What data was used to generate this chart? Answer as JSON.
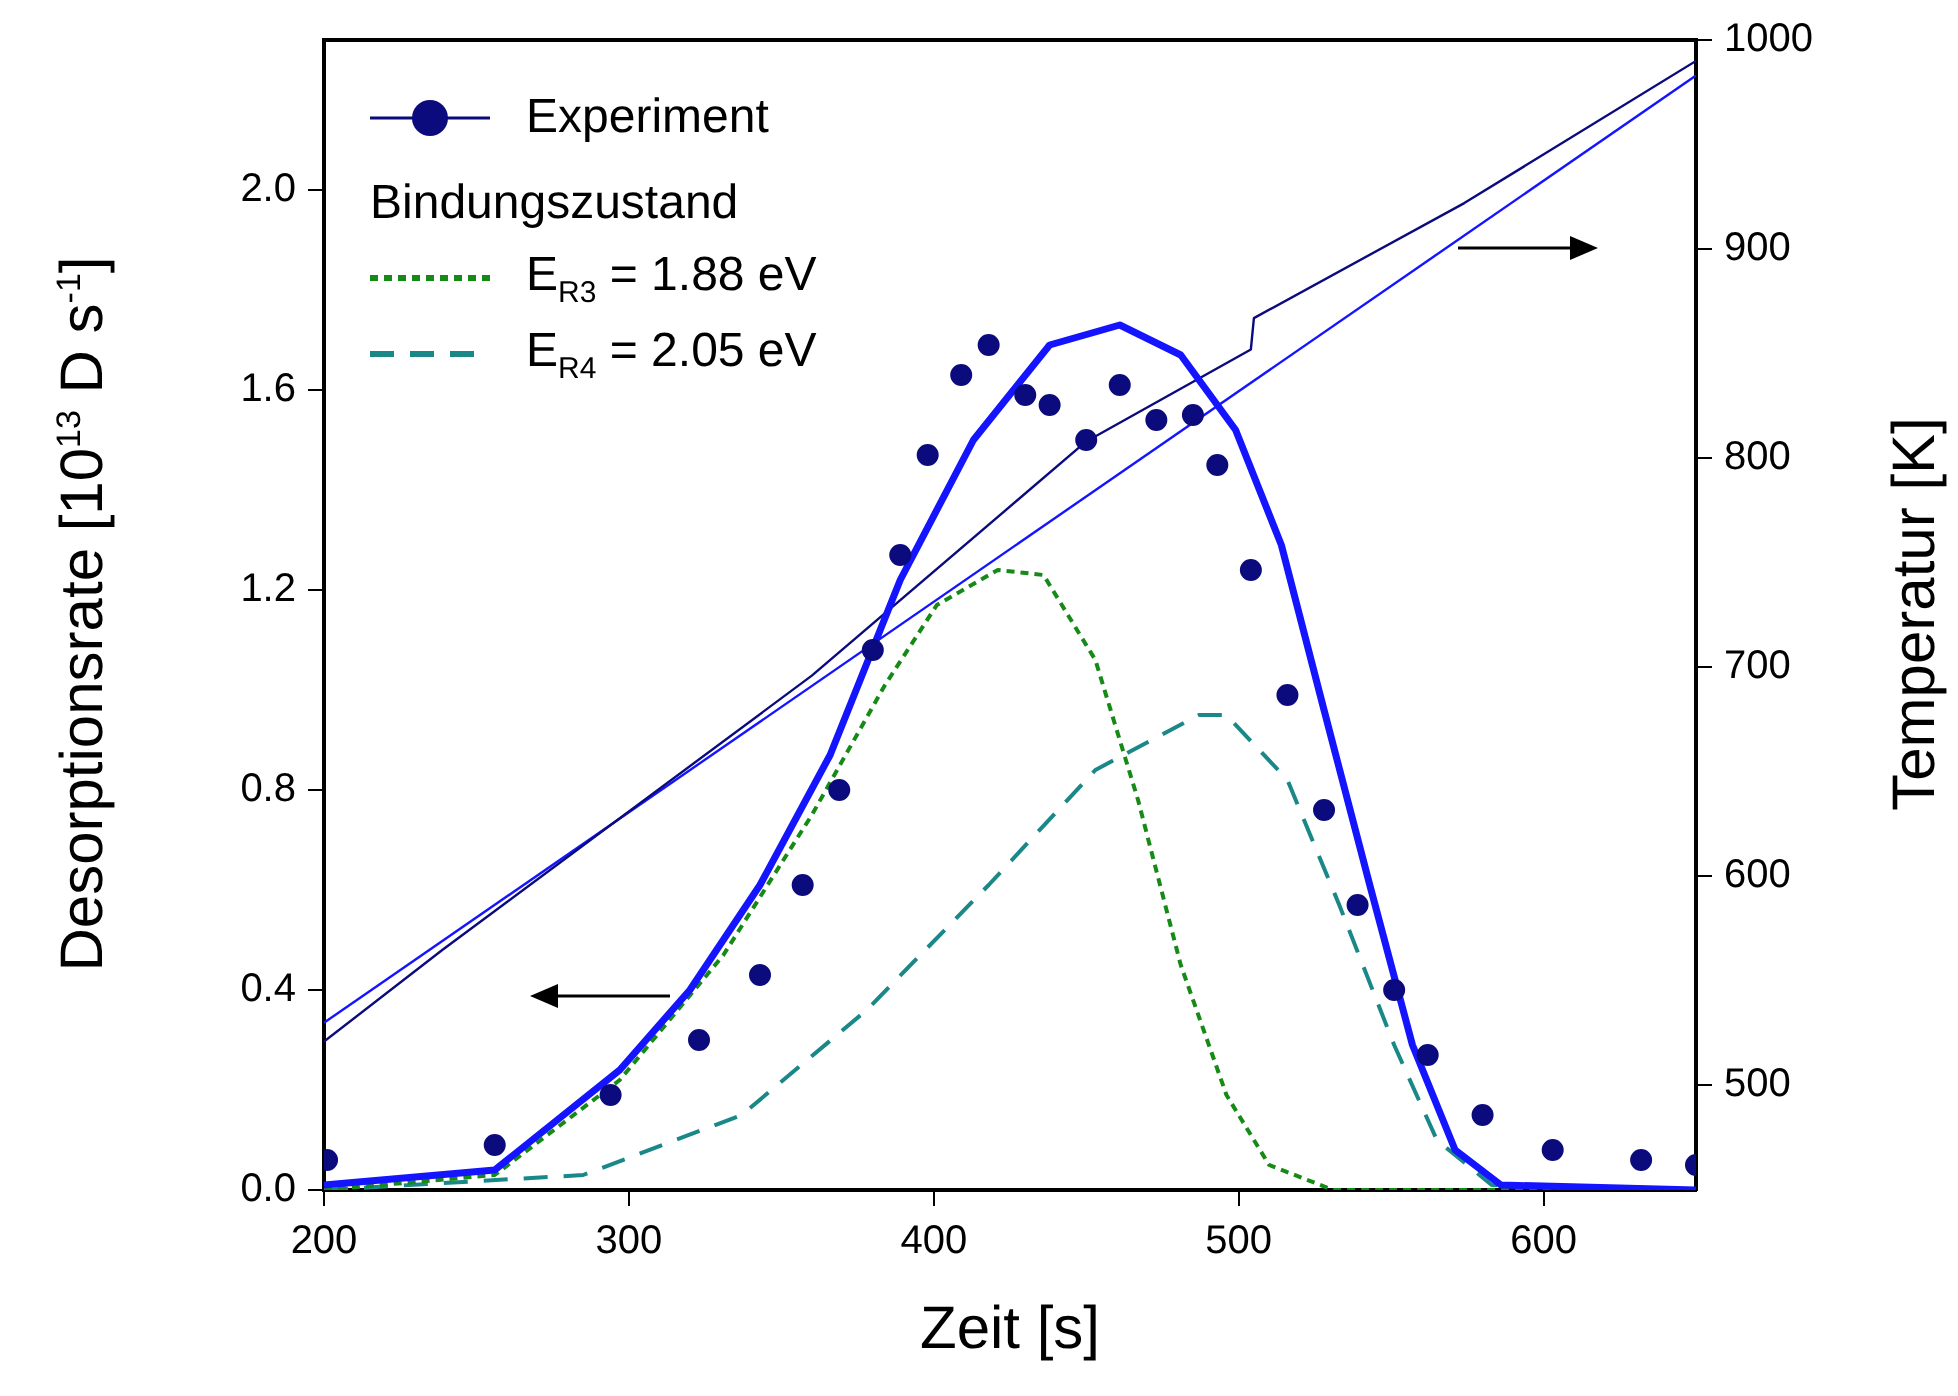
{
  "chart_data": {
    "type": "line",
    "xlabel": "Zeit [s]",
    "ylabel": "Desorptionsrate [10$^{13}$ D s$^{-1}$]",
    "y2label": "Temperatur [K]",
    "legend_title": "Bindungszustand",
    "legend": "top left",
    "grid": false,
    "xlim": [
      200,
      650
    ],
    "xticks": [
      200,
      300,
      400,
      500,
      600
    ],
    "ylim": [
      0,
      2.3
    ],
    "yticks": [
      {
        "value": 0,
        "label": "0.0"
      },
      {
        "value": 0.4,
        "label": "0.4"
      },
      {
        "value": 0.8,
        "label": "0.8"
      },
      {
        "value": 1.2,
        "label": "1.2"
      },
      {
        "value": 1.6,
        "label": "1.6"
      },
      {
        "value": 2,
        "label": "2.0"
      }
    ],
    "y2lim": [
      450,
      1000
    ],
    "y2ticks": [
      500,
      600,
      700,
      800,
      900,
      1000
    ],
    "series": [
      {
        "name": "Experiment",
        "type": "scatter",
        "color": "#0b0b7d",
        "marker": "circle",
        "x": [
          201,
          256,
          294,
          323,
          343,
          357,
          369,
          380,
          389,
          398,
          409,
          418,
          430,
          438,
          450,
          461,
          473,
          485,
          493,
          504,
          516,
          528,
          539,
          551,
          562,
          580,
          603,
          632,
          650
        ],
        "values": [
          0.06,
          0.09,
          0.19,
          0.3,
          0.43,
          0.61,
          0.8,
          1.08,
          1.27,
          1.47,
          1.63,
          1.69,
          1.59,
          1.57,
          1.5,
          1.61,
          1.54,
          1.55,
          1.45,
          1.24,
          0.99,
          0.76,
          0.57,
          0.4,
          0.27,
          0.15,
          0.08,
          0.06,
          0.05
        ]
      },
      {
        "color": "#1414ff",
        "marker": "none",
        "line_style": "solid",
        "x": [
          200,
          256,
          297,
          320,
          343,
          366,
          389,
          413,
          438,
          461,
          481,
          499,
          514,
          528,
          543,
          557,
          571,
          586,
          650
        ],
        "values": [
          0.01,
          0.04,
          0.24,
          0.4,
          0.61,
          0.87,
          1.22,
          1.5,
          1.69,
          1.73,
          1.67,
          1.52,
          1.29,
          0.96,
          0.61,
          0.29,
          0.08,
          0.01,
          0
        ]
      },
      {
        "name": "E$_{R3}$ = 1.88 eV",
        "color": "#168a16",
        "marker": "none",
        "line_style": "dotted",
        "x": [
          200,
          256,
          297,
          331,
          360,
          384,
          401,
          421,
          436,
          453,
          467,
          481,
          496,
          510,
          531,
          650
        ],
        "values": [
          0,
          0.03,
          0.22,
          0.47,
          0.75,
          1.01,
          1.17,
          1.24,
          1.23,
          1.06,
          0.78,
          0.45,
          0.19,
          0.05,
          0,
          0
        ]
      },
      {
        "name": "E$_{R4}$ = 2.05 eV",
        "color": "#1a8888",
        "marker": "none",
        "line_style": "dashed",
        "x": [
          200,
          285,
          337,
          378,
          418,
          453,
          487,
          496,
          516,
          533,
          551,
          565,
          583,
          650
        ],
        "values": [
          0,
          0.03,
          0.15,
          0.36,
          0.61,
          0.84,
          0.95,
          0.95,
          0.82,
          0.57,
          0.29,
          0.1,
          0.01,
          0
        ]
      },
      {
        "axis": "y2",
        "color": "#0b0b7d",
        "marker": "none",
        "line_style": "solid",
        "x": [
          200,
          239,
          360,
          450,
          504,
          505,
          574,
          650
        ],
        "values": [
          521,
          565,
          696,
          808,
          852,
          867,
          922,
          990
        ]
      },
      {
        "axis": "y2",
        "color": "#1414ff",
        "marker": "none",
        "line_style": "solid",
        "x": [
          200,
          650
        ],
        "values": [
          530,
          983
        ]
      }
    ]
  }
}
